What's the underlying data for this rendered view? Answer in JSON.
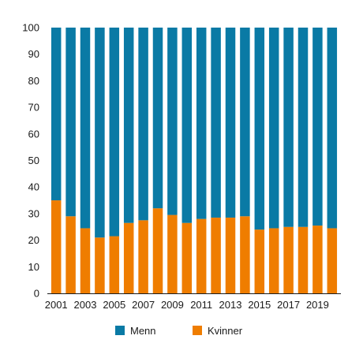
{
  "chart_data": {
    "type": "bar",
    "stacked": true,
    "percent_stacked": true,
    "title": "",
    "xlabel": "",
    "ylabel": "",
    "ylim": [
      0,
      100
    ],
    "yticks": [
      0,
      10,
      20,
      30,
      40,
      50,
      60,
      70,
      80,
      90,
      100
    ],
    "categories": [
      "2001",
      "2002",
      "2003",
      "2004",
      "2005",
      "2006",
      "2007",
      "2008",
      "2009",
      "2010",
      "2011",
      "2012",
      "2013",
      "2014",
      "2015",
      "2016",
      "2017",
      "2018",
      "2019",
      "2020"
    ],
    "x_tick_labels": [
      "2001",
      "2003",
      "2005",
      "2007",
      "2009",
      "2011",
      "2013",
      "2015",
      "2017",
      "2019"
    ],
    "grid": false,
    "legend_position": "bottom",
    "series": [
      {
        "name": "Kvinner",
        "color": "#EF7D00",
        "values": [
          35,
          29,
          24.5,
          21,
          21.5,
          26.5,
          27.5,
          32,
          29.5,
          26.5,
          28,
          28.5,
          28.5,
          29,
          24,
          24.5,
          25,
          25,
          25.5,
          24.5
        ]
      },
      {
        "name": "Menn",
        "color": "#0A7AA5",
        "values": [
          65,
          71,
          75.5,
          79,
          78.5,
          73.5,
          72.5,
          68,
          70.5,
          73.5,
          72,
          71.5,
          71.5,
          71,
          76,
          75.5,
          75,
          75,
          74.5,
          75.5
        ]
      }
    ],
    "legend": [
      {
        "name": "Menn",
        "color": "#0A7AA5"
      },
      {
        "name": "Kvinner",
        "color": "#EF7D00"
      }
    ]
  }
}
